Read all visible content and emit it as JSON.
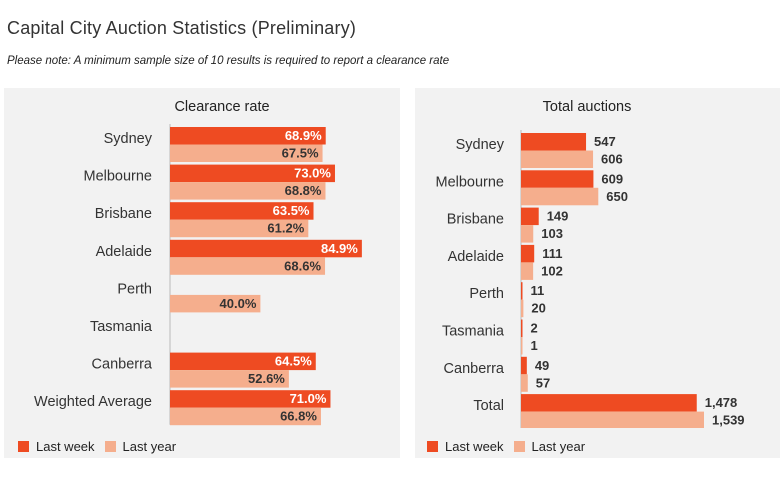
{
  "page": {
    "title": "Capital City Auction Statistics (Preliminary)",
    "note": "Please note: A minimum sample size of 10 results is required to report a clearance rate"
  },
  "colors": {
    "last_week": "#ee4b22",
    "last_year": "#f5ae8d",
    "axis": "#bbbbbb"
  },
  "legend": {
    "last_week": "Last week",
    "last_year": "Last year"
  },
  "chart_data": [
    {
      "type": "bar",
      "orientation": "horizontal",
      "title": "Clearance rate",
      "categories": [
        "Sydney",
        "Melbourne",
        "Brisbane",
        "Adelaide",
        "Perth",
        "Tasmania",
        "Canberra",
        "Weighted Average"
      ],
      "series": [
        {
          "name": "Last week",
          "values": [
            68.9,
            73.0,
            63.5,
            84.9,
            null,
            null,
            64.5,
            71.0
          ],
          "labels": [
            "68.9%",
            "73.0%",
            "63.5%",
            "84.9%",
            "",
            "",
            "64.5%",
            "71.0%"
          ]
        },
        {
          "name": "Last year",
          "values": [
            67.5,
            68.8,
            61.2,
            68.6,
            40.0,
            null,
            52.6,
            66.8
          ],
          "labels": [
            "67.5%",
            "68.8%",
            "61.2%",
            "68.6%",
            "40.0%",
            "",
            "52.6%",
            "66.8%"
          ]
        }
      ],
      "xlim": [
        0,
        100
      ],
      "label_position": "inside-end",
      "legend_position": "bottom-left",
      "grid": false
    },
    {
      "type": "bar",
      "orientation": "horizontal",
      "title": "Total auctions",
      "categories": [
        "Sydney",
        "Melbourne",
        "Brisbane",
        "Adelaide",
        "Perth",
        "Tasmania",
        "Canberra",
        "Total"
      ],
      "series": [
        {
          "name": "Last week",
          "values": [
            547,
            609,
            149,
            111,
            11,
            2,
            49,
            1478
          ],
          "labels": [
            "547",
            "609",
            "149",
            "111",
            "11",
            "2",
            "49",
            "1,478"
          ]
        },
        {
          "name": "Last year",
          "values": [
            606,
            650,
            103,
            102,
            20,
            1,
            57,
            1539
          ],
          "labels": [
            "606",
            "650",
            "103",
            "102",
            "20",
            "1",
            "57",
            "1,539"
          ]
        }
      ],
      "xlim": [
        0,
        1539
      ],
      "label_position": "outside-end",
      "legend_position": "bottom-left",
      "grid": false
    }
  ]
}
